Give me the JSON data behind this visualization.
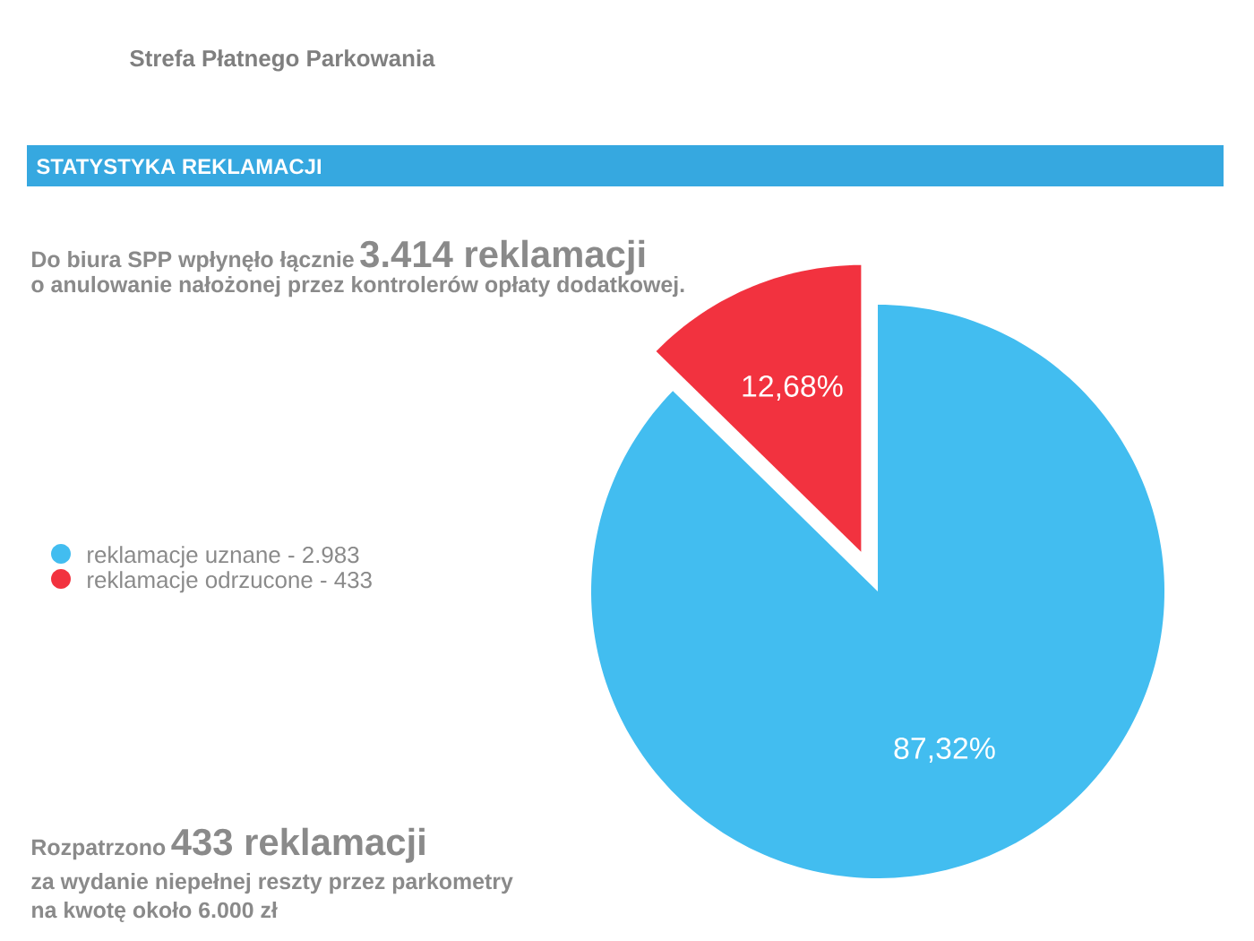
{
  "chart_data": {
    "type": "pie",
    "title": "Strefa Płatnego Parkowania",
    "subtitle": "STATYSTYKA REKLAMACJI",
    "categories": [
      "reklamacje uznane - 2.983",
      "reklamacje odrzucone - 433"
    ],
    "values": [
      87.32,
      12.68
    ],
    "colors": [
      "#42bdf0",
      "#f2323f"
    ],
    "value_labels": [
      "87,32%",
      "12,68%"
    ],
    "legend": "left",
    "annotations": [
      "Do biura SPP wpłynęło łącznie",
      "3.414 reklamacji",
      "o anulowanie nałożonej przez kontrolerów opłaty dodatkowej.",
      "Rozpatrzono",
      "433 reklamacji",
      "za wydanie niepełnej reszty przez parkometry",
      "na kwotę około 6.000 zł"
    ]
  }
}
